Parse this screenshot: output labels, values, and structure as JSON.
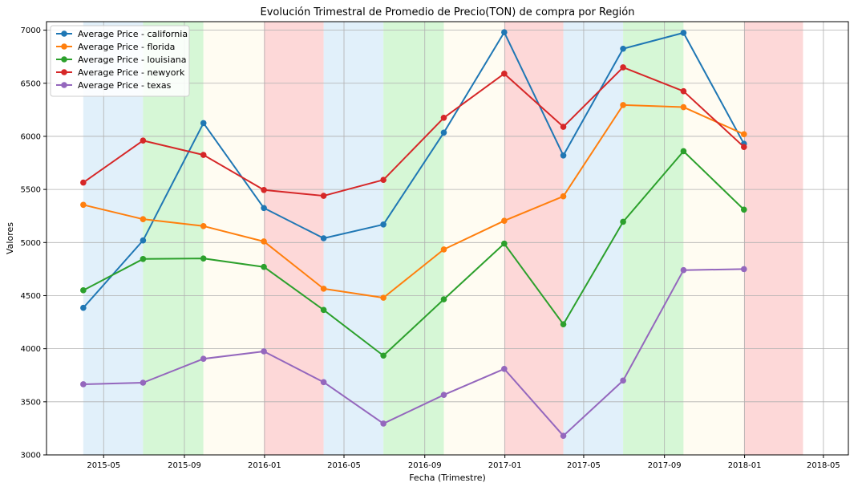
{
  "chart_data": {
    "type": "line",
    "title": "Evolución Trimestral de Promedio de Precio(TON) de compra por Región",
    "xlabel": "Fecha (Trimestre)",
    "ylabel": "Valores",
    "x": [
      "2015-03-31",
      "2015-06-30",
      "2015-09-30",
      "2015-12-31",
      "2016-03-31",
      "2016-06-30",
      "2016-09-30",
      "2016-12-31",
      "2017-03-31",
      "2017-06-30",
      "2017-09-30",
      "2017-12-31"
    ],
    "xlim": [
      "2015-02-03",
      "2018-06-08"
    ],
    "ylim": [
      3000,
      7080
    ],
    "x_ticks": [
      {
        "date": "2015-05-01",
        "label": "2015-05"
      },
      {
        "date": "2015-09-01",
        "label": "2015-09"
      },
      {
        "date": "2016-01-01",
        "label": "2016-01"
      },
      {
        "date": "2016-05-01",
        "label": "2016-05"
      },
      {
        "date": "2016-09-01",
        "label": "2016-09"
      },
      {
        "date": "2017-01-01",
        "label": "2017-01"
      },
      {
        "date": "2017-05-01",
        "label": "2017-05"
      },
      {
        "date": "2017-09-01",
        "label": "2017-09"
      },
      {
        "date": "2018-01-01",
        "label": "2018-01"
      },
      {
        "date": "2018-05-01",
        "label": "2018-05"
      }
    ],
    "y_ticks": [
      3000,
      3500,
      4000,
      4500,
      5000,
      5500,
      6000,
      6500,
      7000
    ],
    "grid": true,
    "legend_position": "top-left",
    "quarter_shading": [
      {
        "start": "2015-03-31",
        "end": "2015-06-30",
        "color": "#e1f0fa"
      },
      {
        "start": "2015-06-30",
        "end": "2015-09-30",
        "color": "#d6f7d6"
      },
      {
        "start": "2015-09-30",
        "end": "2015-12-31",
        "color": "#fffcf2"
      },
      {
        "start": "2015-12-31",
        "end": "2016-03-31",
        "color": "#fdd8d8"
      },
      {
        "start": "2016-03-31",
        "end": "2016-06-30",
        "color": "#e1f0fa"
      },
      {
        "start": "2016-06-30",
        "end": "2016-09-30",
        "color": "#d6f7d6"
      },
      {
        "start": "2016-09-30",
        "end": "2016-12-31",
        "color": "#fffcf2"
      },
      {
        "start": "2016-12-31",
        "end": "2017-03-31",
        "color": "#fdd8d8"
      },
      {
        "start": "2017-03-31",
        "end": "2017-06-30",
        "color": "#e1f0fa"
      },
      {
        "start": "2017-06-30",
        "end": "2017-09-30",
        "color": "#d6f7d6"
      },
      {
        "start": "2017-09-30",
        "end": "2017-12-31",
        "color": "#fffcf2"
      },
      {
        "start": "2017-12-31",
        "end": "2018-03-31",
        "color": "#fdd8d8"
      }
    ],
    "series": [
      {
        "name": "Average Price - california",
        "color": "#1f77b4",
        "values": [
          4385,
          5020,
          6125,
          5325,
          5040,
          5170,
          6035,
          6980,
          5820,
          6825,
          6975,
          5930
        ]
      },
      {
        "name": "Average Price - florida",
        "color": "#ff7f0e",
        "values": [
          5355,
          5220,
          5155,
          5010,
          4565,
          4480,
          4935,
          5205,
          5435,
          6295,
          6275,
          6020
        ]
      },
      {
        "name": "Average Price - louisiana",
        "color": "#2ca02c",
        "values": [
          4550,
          4845,
          4850,
          4770,
          4365,
          3935,
          4465,
          4990,
          4230,
          5195,
          5860,
          5310
        ]
      },
      {
        "name": "Average Price - newyork",
        "color": "#d62728",
        "values": [
          5565,
          5960,
          5825,
          5495,
          5440,
          5590,
          6175,
          6590,
          6090,
          6650,
          6425,
          5900
        ]
      },
      {
        "name": "Average Price - texas",
        "color": "#9467bd",
        "values": [
          3665,
          3680,
          3905,
          3975,
          3685,
          3295,
          3565,
          3810,
          3180,
          3700,
          4740,
          4750
        ]
      }
    ]
  }
}
